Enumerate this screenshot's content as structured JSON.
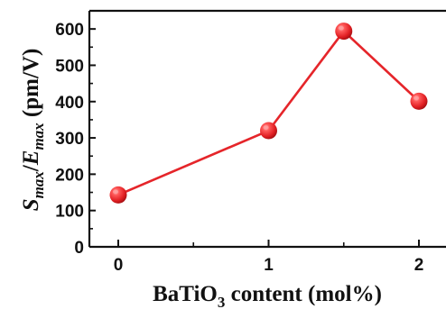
{
  "chart_data": {
    "type": "line",
    "title": "",
    "xlabel": {
      "base": "BaTiO",
      "sub": "3",
      "rest": " content (mol%)"
    },
    "ylabel": {
      "s": "S",
      "s_sub": "max",
      "slash": "/",
      "e": "E",
      "e_sub": "max",
      "unit": " (pm/V)"
    },
    "x": [
      0,
      1,
      1.5,
      2
    ],
    "y": [
      143,
      320,
      594,
      401
    ],
    "xlim": [
      -0.2,
      2.2
    ],
    "ylim": [
      0,
      650
    ],
    "xticks": [
      "0",
      "1",
      "2"
    ],
    "yticks": [
      "0",
      "100",
      "200",
      "300",
      "400",
      "500",
      "600"
    ],
    "grid": false,
    "legend": false,
    "colors": {
      "line": "#e5252a",
      "marker": "#e01e22",
      "marker_highlight": "#ff9a9a",
      "axis": "#111111"
    }
  }
}
